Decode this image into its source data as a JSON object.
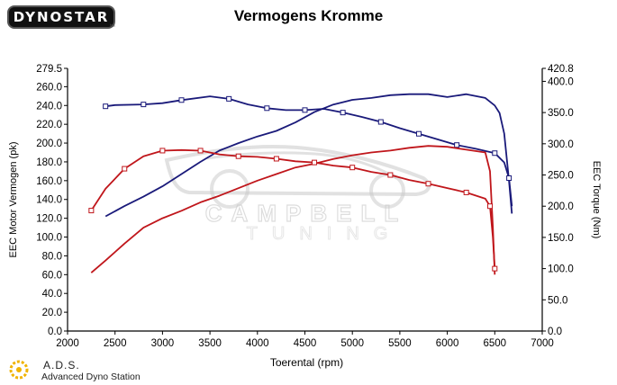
{
  "header": {
    "logo_text": "DYNOSTAR",
    "logo_sub": "tm",
    "title": "Vermogens Kromme"
  },
  "footer": {
    "ads_title": "A.D.S.",
    "ads_sub": "Advanced Dyno Station"
  },
  "colors": {
    "power_series": "#1a1a7a",
    "torque_series": "#c0161b",
    "axis": "#000000",
    "watermark": "#c8c8c8"
  },
  "watermark": {
    "text_line1": "CAMPBELL",
    "text_line2": "TUNING"
  },
  "chart_data": {
    "type": "line",
    "title": "Vermogens Kromme",
    "xlabel": "Toerental (rpm)",
    "ylabel_left": "EEC Motor Vermogen (pk)",
    "ylabel_right": "EEC Torque (Nm)",
    "xlim": [
      2000,
      7000
    ],
    "ylim_left": [
      0,
      279.5
    ],
    "ylim_right": [
      0,
      420.8
    ],
    "x_ticks": [
      "2000",
      "2500",
      "3000",
      "3500",
      "4000",
      "4500",
      "5000",
      "5500",
      "6000",
      "6500",
      "7000"
    ],
    "y_ticks_left": [
      "0.0",
      "20.0",
      "40.0",
      "60.0",
      "80.0",
      "100.0",
      "120.0",
      "140.0",
      "160.0",
      "180.0",
      "200.0",
      "220.0",
      "240.0",
      "260.0",
      "279.5"
    ],
    "y_ticks_right": [
      "0.0",
      "50.0",
      "100.0",
      "150.0",
      "200.0",
      "250.0",
      "300.0",
      "350.0",
      "400.0",
      "420.8"
    ],
    "grid": false,
    "legend": "none",
    "series": [
      {
        "axis": "left",
        "color": "blue",
        "x": [
          2400,
          2600,
          2800,
          3000,
          3200,
          3400,
          3600,
          3800,
          4000,
          4200,
          4400,
          4600,
          4800,
          5000,
          5200,
          5400,
          5600,
          5800,
          6000,
          6200,
          6400,
          6500,
          6550,
          6600,
          6650,
          6680
        ],
        "y": [
          122,
          133,
          143,
          154,
          167,
          180,
          192,
          200,
          207,
          213,
          222,
          233,
          241,
          246,
          248,
          251,
          252,
          252,
          249,
          252,
          248,
          240,
          232,
          210,
          160,
          125
        ]
      },
      {
        "axis": "right",
        "color": "blue",
        "x": [
          2400,
          2500,
          2800,
          3000,
          3200,
          3500,
          3700,
          3900,
          4100,
          4300,
          4500,
          4700,
          4900,
          5100,
          5300,
          5500,
          5700,
          5900,
          6100,
          6300,
          6500,
          6600,
          6650,
          6680
        ],
        "y": [
          360,
          362,
          363,
          365,
          370,
          376,
          372,
          363,
          357,
          354,
          354,
          356,
          350,
          343,
          335,
          325,
          316,
          307,
          298,
          292,
          285,
          270,
          245,
          200
        ]
      },
      {
        "axis": "left",
        "color": "red",
        "x": [
          2250,
          2400,
          2600,
          2800,
          3000,
          3200,
          3400,
          3600,
          3800,
          4000,
          4200,
          4400,
          4600,
          4800,
          5000,
          5200,
          5400,
          5600,
          5800,
          6000,
          6200,
          6400,
          6450,
          6480,
          6500
        ],
        "y": [
          62,
          75,
          93,
          110,
          120,
          128,
          137,
          144,
          152,
          160,
          167,
          174,
          178,
          183,
          187,
          190,
          192,
          195,
          197,
          196,
          193,
          190,
          170,
          110,
          60
        ]
      },
      {
        "axis": "right",
        "color": "red",
        "x": [
          2250,
          2400,
          2600,
          2800,
          3000,
          3200,
          3400,
          3600,
          3800,
          4000,
          4200,
          4400,
          4600,
          4800,
          5000,
          5200,
          5400,
          5600,
          5800,
          6000,
          6200,
          6400,
          6450,
          6480,
          6500
        ],
        "y": [
          193,
          228,
          260,
          280,
          289,
          290,
          289,
          283,
          280,
          279,
          276,
          272,
          270,
          265,
          262,
          255,
          250,
          242,
          236,
          229,
          222,
          212,
          200,
          150,
          100
        ]
      }
    ]
  }
}
